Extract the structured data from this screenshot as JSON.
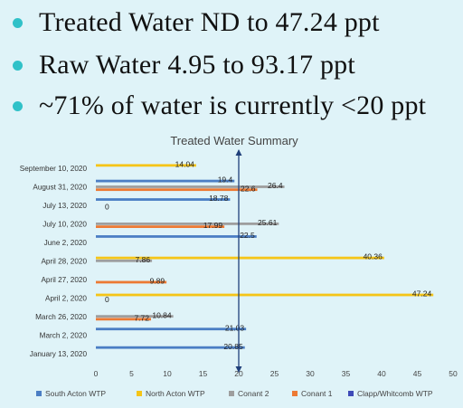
{
  "bullets": [
    "Treated Water ND to 47.24 ppt",
    "Raw Water 4.95 to 93.17 ppt",
    "~71% of water is currently <20 ppt"
  ],
  "colors": {
    "bullet": "#30c1c8",
    "south_acton": "#4b7ec4",
    "north_acton": "#f5c518",
    "conant2": "#9e9e9e",
    "conant1": "#ec7a34",
    "clapp_whitcomb": "#3e4bb8",
    "threshold_line": "#1f3f7a"
  },
  "chart_data": {
    "type": "bar",
    "orientation": "horizontal",
    "title": "Treated Water Summary",
    "xlabel": "",
    "ylabel": "",
    "xlim": [
      0,
      50
    ],
    "xticks": [
      0,
      5,
      10,
      15,
      20,
      25,
      30,
      35,
      40,
      45,
      50
    ],
    "grid": false,
    "legend_position": "bottom",
    "reference_line": {
      "x": 20,
      "arrow": "both"
    },
    "categories": [
      "September 10, 2020",
      "August 31, 2020",
      "July 13, 2020",
      "July 10, 2020",
      "June 2, 2020",
      "April 28, 2020",
      "April 27, 2020",
      "April 2, 2020",
      "March 26, 2020",
      "March 2, 2020",
      "January 13, 2020"
    ],
    "series": [
      {
        "name": "South Acton WTP",
        "color": "#4b7ec4",
        "values": [
          null,
          19.4,
          18.78,
          null,
          22.5,
          null,
          null,
          null,
          null,
          21.03,
          20.85
        ],
        "labels": [
          "",
          "19.4",
          "18.78",
          "",
          "22.5",
          "",
          "",
          "",
          "",
          "21.03",
          "20.85"
        ]
      },
      {
        "name": "North Acton WTP",
        "color": "#f5c518",
        "values": [
          14.04,
          null,
          null,
          null,
          null,
          40.36,
          null,
          47.24,
          null,
          null,
          null
        ],
        "labels": [
          "14.04",
          "",
          "",
          "",
          "",
          "40.36",
          "",
          "47.24",
          "",
          "",
          ""
        ]
      },
      {
        "name": "Conant 2",
        "color": "#9e9e9e",
        "values": [
          null,
          26.4,
          null,
          25.61,
          null,
          7.86,
          null,
          null,
          10.84,
          null,
          null
        ],
        "labels": [
          "",
          "26.4",
          "",
          "25.61",
          "",
          "7.86",
          "",
          "",
          "10.84",
          "",
          ""
        ]
      },
      {
        "name": "Conant 1",
        "color": "#ec7a34",
        "values": [
          null,
          22.6,
          0,
          17.99,
          null,
          null,
          9.89,
          0,
          7.72,
          null,
          null
        ],
        "labels": [
          "",
          "22.6",
          "0",
          "17.99",
          "",
          "",
          "9.89",
          "0",
          "7.72",
          "",
          ""
        ]
      },
      {
        "name": "Clapp/Whitcomb WTP",
        "color": "#3e4bb8",
        "values": [
          null,
          null,
          null,
          null,
          null,
          null,
          null,
          null,
          null,
          null,
          null
        ],
        "labels": [
          "",
          "",
          "",
          "",
          "",
          "",
          "",
          "",
          "",
          "",
          ""
        ]
      }
    ]
  }
}
